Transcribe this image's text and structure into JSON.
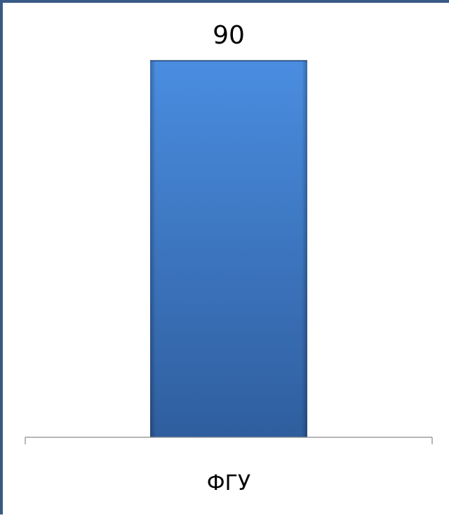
{
  "chart_data": {
    "type": "bar",
    "categories": [
      "ФГУ"
    ],
    "values": [
      90
    ],
    "data_labels": [
      "90"
    ],
    "ylim": [
      0,
      90
    ],
    "grid": false,
    "legend": "none",
    "title": "",
    "xlabel": "",
    "ylabel": ""
  },
  "colors": {
    "border": "#3a5a86",
    "bar_top": "#4a8de0",
    "bar_bottom": "#2f5e9e",
    "axis": "#8a8a8a",
    "text": "#000000"
  }
}
